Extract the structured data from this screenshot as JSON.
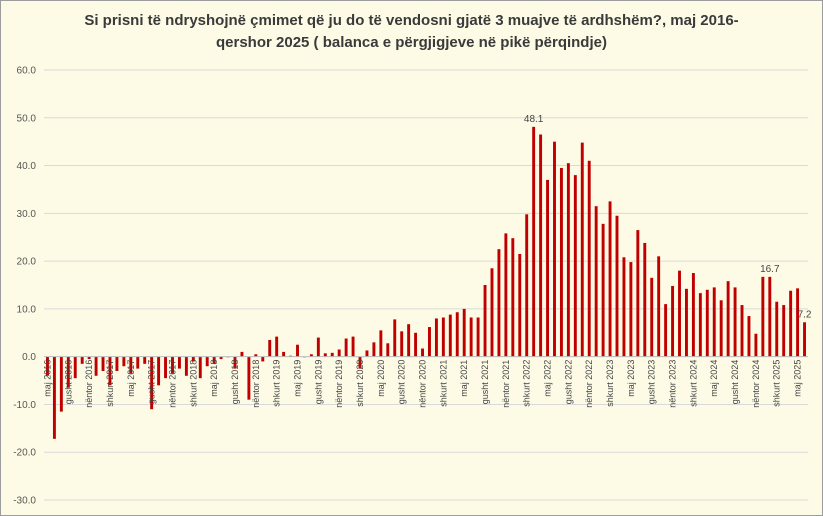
{
  "chart_data": {
    "type": "bar",
    "title_line1": "Si prisni të ndryshojnë çmimet që ju do të vendosni gjatë 3 muajve të ardhshëm?, maj 2016-",
    "title_line2": "qershor 2025 ( balanca e përgjigjeve në pikë përqindje)",
    "ylim": [
      -30,
      60
    ],
    "yticks": [
      "60.0",
      "50.0",
      "40.0",
      "30.0",
      "20.0",
      "10.0",
      "0.0",
      "-10.0",
      "-20.0",
      "-30.0"
    ],
    "grid": true,
    "bar_color": "#c00000",
    "x_labels": [
      {
        "index": 0,
        "label": "maj 2016"
      },
      {
        "index": 3,
        "label": "gusht 2016"
      },
      {
        "index": 6,
        "label": "nëntor 2016"
      },
      {
        "index": 9,
        "label": "shkurt 2017"
      },
      {
        "index": 12,
        "label": "maj 2017"
      },
      {
        "index": 15,
        "label": "gusht 2017"
      },
      {
        "index": 18,
        "label": "nëntor 2017"
      },
      {
        "index": 21,
        "label": "shkurt 2018"
      },
      {
        "index": 24,
        "label": "maj 2018"
      },
      {
        "index": 27,
        "label": "gusht 2018"
      },
      {
        "index": 30,
        "label": "nëntor 2018"
      },
      {
        "index": 33,
        "label": "shkurt 2019"
      },
      {
        "index": 36,
        "label": "maj 2019"
      },
      {
        "index": 39,
        "label": "gusht 2019"
      },
      {
        "index": 42,
        "label": "nëntor 2019"
      },
      {
        "index": 45,
        "label": "shkurt 2020"
      },
      {
        "index": 48,
        "label": "maj 2020"
      },
      {
        "index": 51,
        "label": "gusht 2020"
      },
      {
        "index": 54,
        "label": "nëntor 2020"
      },
      {
        "index": 57,
        "label": "shkurt 2021"
      },
      {
        "index": 60,
        "label": "maj 2021"
      },
      {
        "index": 63,
        "label": "gusht 2021"
      },
      {
        "index": 66,
        "label": "nëntor 2021"
      },
      {
        "index": 69,
        "label": "shkurt 2022"
      },
      {
        "index": 72,
        "label": "maj 2022"
      },
      {
        "index": 75,
        "label": "gusht 2022"
      },
      {
        "index": 78,
        "label": "nëntor 2022"
      },
      {
        "index": 81,
        "label": "shkurt 2023"
      },
      {
        "index": 84,
        "label": "maj 2023"
      },
      {
        "index": 87,
        "label": "gusht 2023"
      },
      {
        "index": 90,
        "label": "nëntor 2023"
      },
      {
        "index": 93,
        "label": "shkurt 2024"
      },
      {
        "index": 96,
        "label": "maj 2024"
      },
      {
        "index": 99,
        "label": "gusht 2024"
      },
      {
        "index": 102,
        "label": "nëntor 2024"
      },
      {
        "index": 105,
        "label": "shkurt 2025"
      },
      {
        "index": 108,
        "label": "maj 2025"
      }
    ],
    "values": [
      -4.0,
      -17.2,
      -11.5,
      -6.5,
      -4.5,
      -1.5,
      -0.5,
      -4.0,
      -3.0,
      -6.0,
      -3.0,
      -2.0,
      -3.5,
      -2.5,
      -1.5,
      -11.0,
      -6.0,
      -4.5,
      -3.5,
      -2.5,
      -4.0,
      -1.0,
      -4.5,
      -2.0,
      -1.5,
      -0.5,
      0.0,
      -2.5,
      1.0,
      -9.0,
      0.5,
      -1.0,
      3.5,
      4.2,
      1.0,
      0.2,
      2.5,
      0.0,
      0.5,
      4.0,
      0.7,
      0.8,
      1.5,
      3.8,
      4.2,
      -2.5,
      1.3,
      3.0,
      5.5,
      2.8,
      7.8,
      5.3,
      6.8,
      5.0,
      1.7,
      6.2,
      8.0,
      8.2,
      8.8,
      9.3,
      10.0,
      8.2,
      8.2,
      15.0,
      18.5,
      22.5,
      25.8,
      24.8,
      21.5,
      29.8,
      48.1,
      46.5,
      37.0,
      45.0,
      39.5,
      40.5,
      38.0,
      44.8,
      41.0,
      31.5,
      27.8,
      32.5,
      29.5,
      20.8,
      19.8,
      26.5,
      23.8,
      16.5,
      21.0,
      11.0,
      14.8,
      18.0,
      14.2,
      17.5,
      13.3,
      14.0,
      14.5,
      11.8,
      15.8,
      14.5,
      10.8,
      8.5,
      4.8,
      16.7,
      16.7,
      11.5,
      10.8,
      13.8,
      14.3,
      7.2
    ],
    "data_labels": [
      {
        "index": 70,
        "text": "48.1"
      },
      {
        "index": 104,
        "text": "16.7"
      },
      {
        "index": 109,
        "text": "7.2"
      }
    ]
  }
}
